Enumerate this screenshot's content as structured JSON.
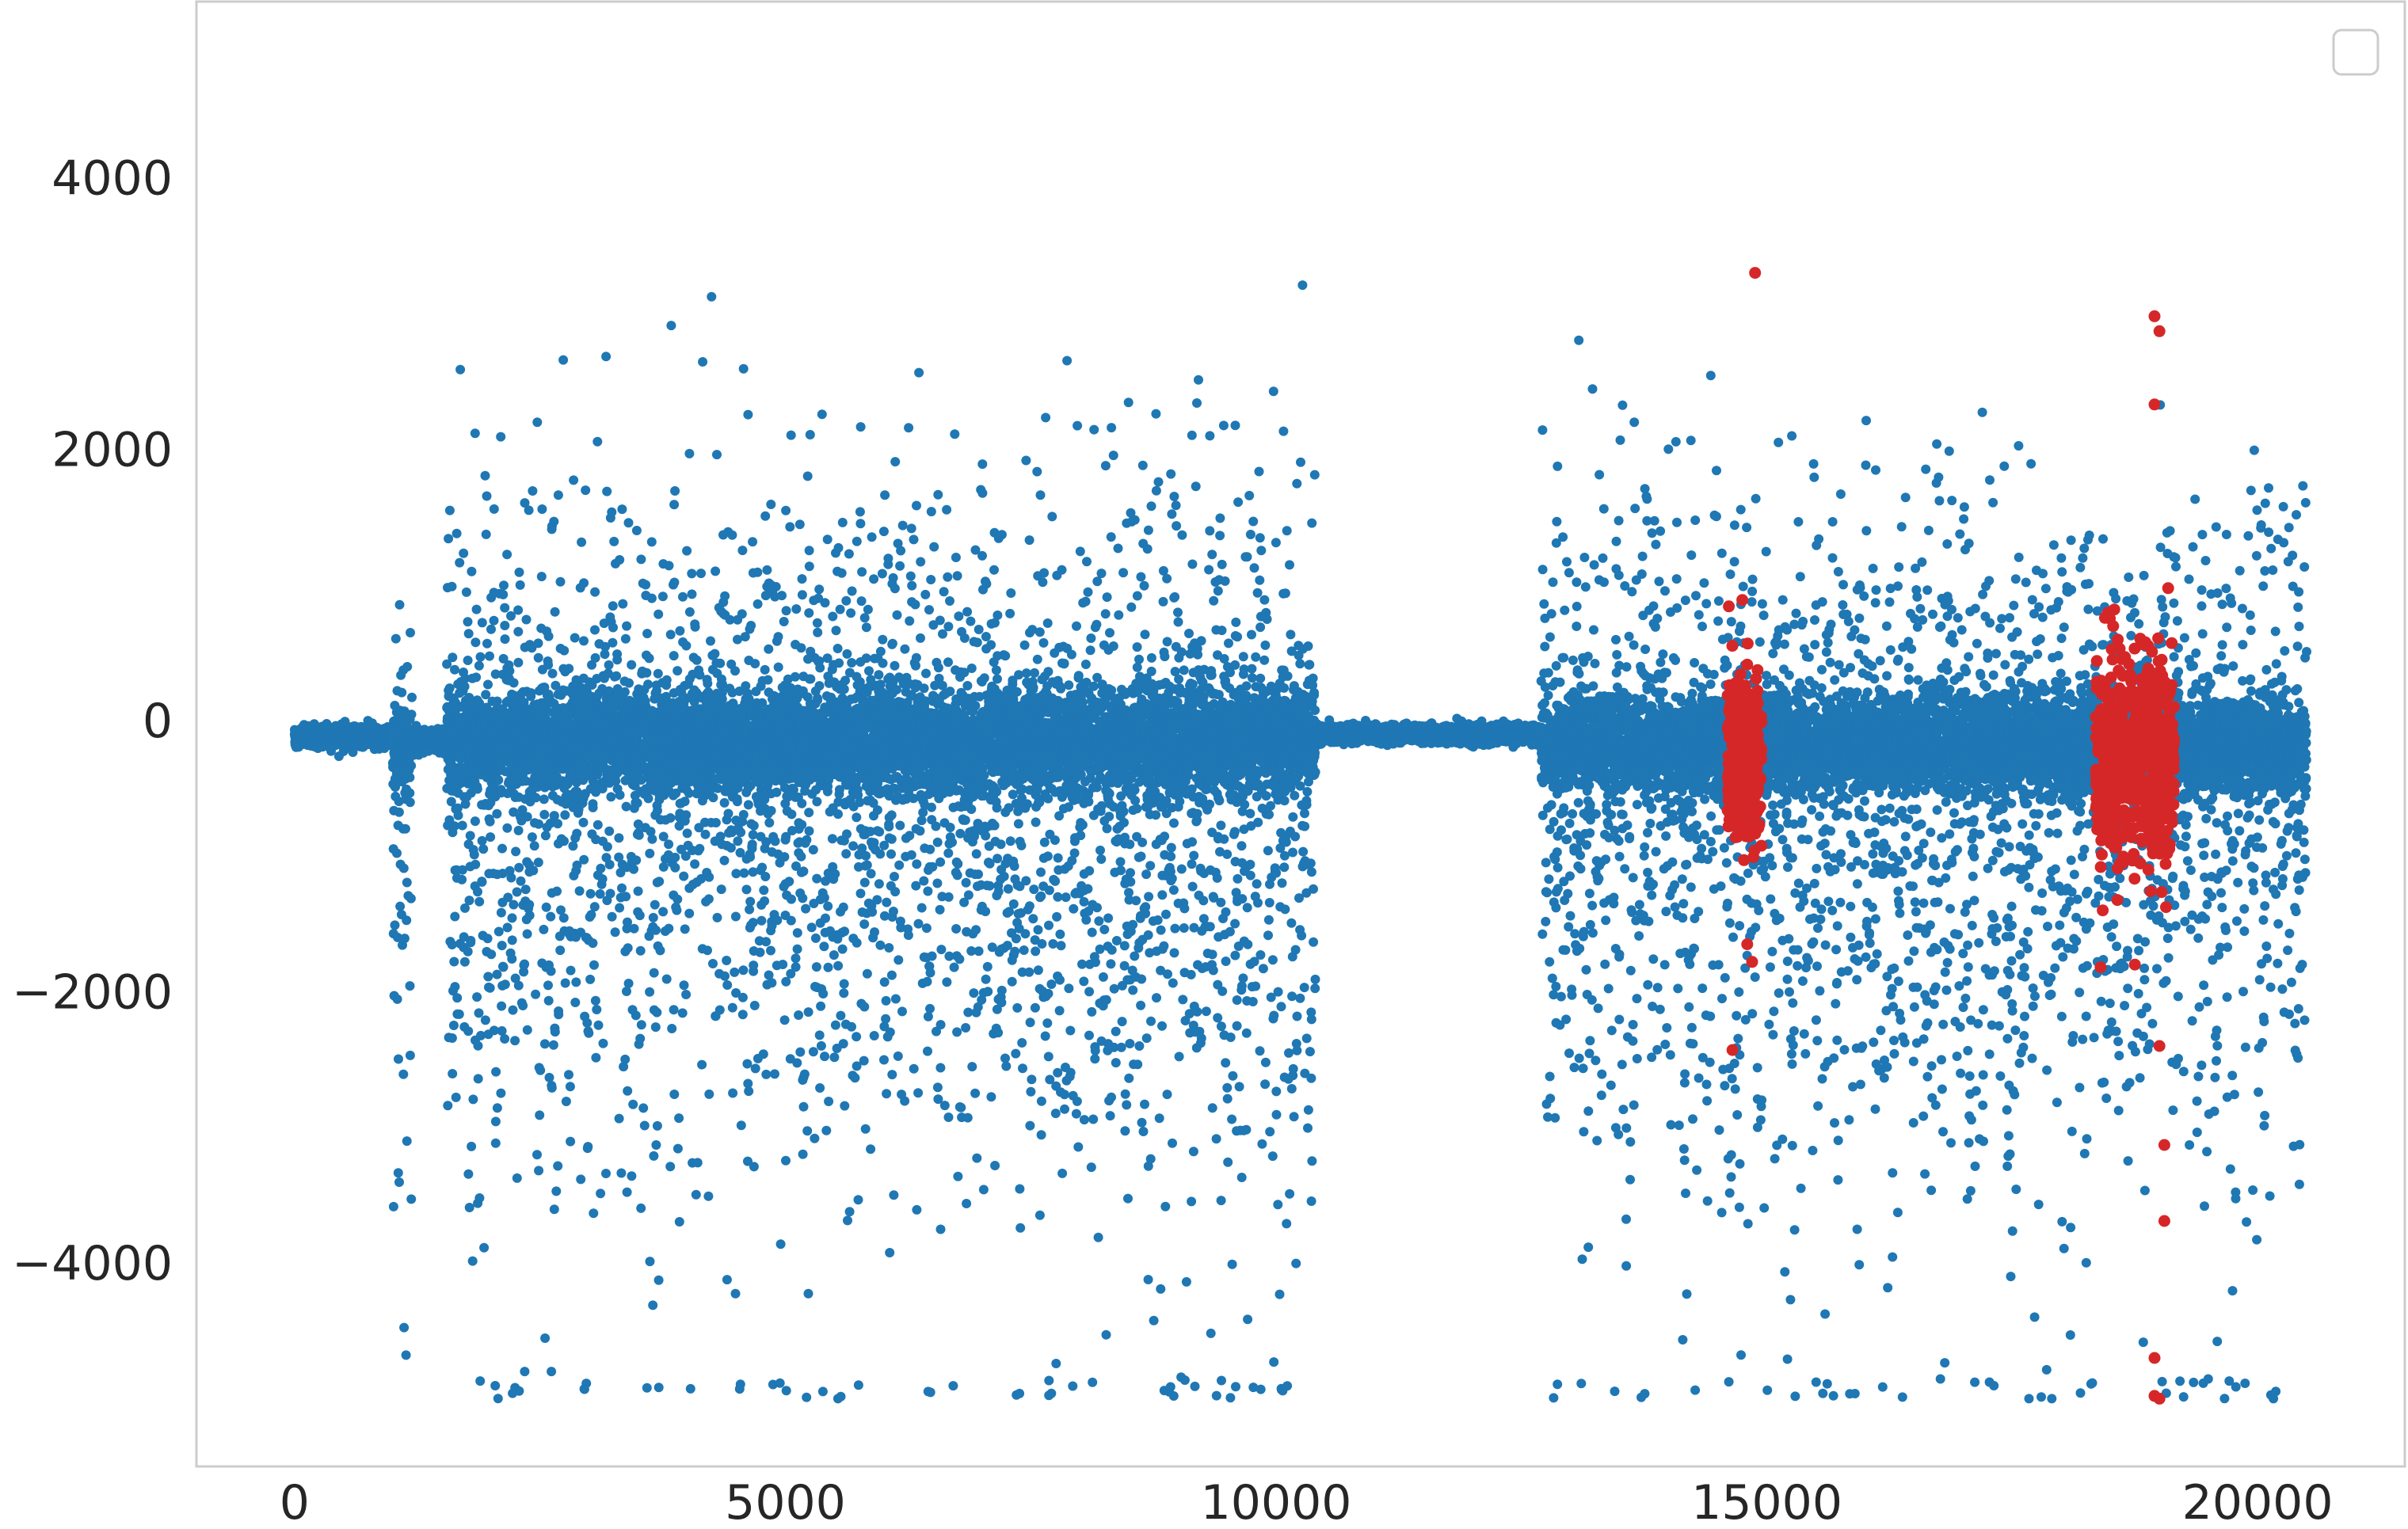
{
  "chart_data": {
    "type": "scatter",
    "title": "",
    "xlabel": "",
    "ylabel": "",
    "xlim": [
      -1000,
      21500
    ],
    "ylim": [
      -5500,
      5300
    ],
    "grid": false,
    "legend": {
      "placement": "top-right",
      "entries": []
    },
    "x_ticks": [
      0,
      5000,
      10000,
      15000,
      20000
    ],
    "x_tick_labels": [
      "0",
      "5000",
      "10000",
      "15000",
      "20000"
    ],
    "y_ticks": [
      -4000,
      -2000,
      0,
      2000,
      4000
    ],
    "y_tick_labels": [
      "−4000",
      "−2000",
      "0",
      "2000",
      "4000"
    ],
    "series": [
      {
        "role": "normal",
        "color": "#1f77b4",
        "regions": [
          {
            "x": [
              0,
              1000
            ],
            "center": -120,
            "spread": 60
          },
          {
            "x": [
              1000,
              1200
            ],
            "center": -200,
            "spread": 250
          },
          {
            "x": [
              1200,
              1550
            ],
            "center": -150,
            "spread": 60
          },
          {
            "x": [
              1550,
              10400
            ],
            "center": -150,
            "spread": 320
          },
          {
            "x": [
              10400,
              12700
            ],
            "center": -100,
            "spread": 50
          },
          {
            "x": [
              12700,
              20500
            ],
            "center": -180,
            "spread": 300
          }
        ],
        "n_points": 20500,
        "outlier_range": [
          -5000,
          4800
        ]
      },
      {
        "role": "anomaly",
        "color": "#d62728",
        "regions": [
          {
            "x": [
              14600,
              14950
            ],
            "center": -250,
            "spread": 300
          },
          {
            "x": [
              18350,
              19150
            ],
            "center": -300,
            "spread": 350
          }
        ],
        "outliers": [
          {
            "x": 14880,
            "y": 3300
          },
          {
            "x": 18950,
            "y": 2980
          },
          {
            "x": 19000,
            "y": 2870
          },
          {
            "x": 18950,
            "y": 2330
          },
          {
            "x": 14650,
            "y": -2430
          },
          {
            "x": 14800,
            "y": -1650
          },
          {
            "x": 14850,
            "y": -1780
          },
          {
            "x": 18400,
            "y": -1820
          },
          {
            "x": 18750,
            "y": -1800
          },
          {
            "x": 19000,
            "y": -2400
          },
          {
            "x": 19050,
            "y": -3130
          },
          {
            "x": 19050,
            "y": -3690
          },
          {
            "x": 18950,
            "y": -4700
          },
          {
            "x": 19000,
            "y": -5000
          },
          {
            "x": 18950,
            "y": -4980
          }
        ]
      }
    ]
  }
}
